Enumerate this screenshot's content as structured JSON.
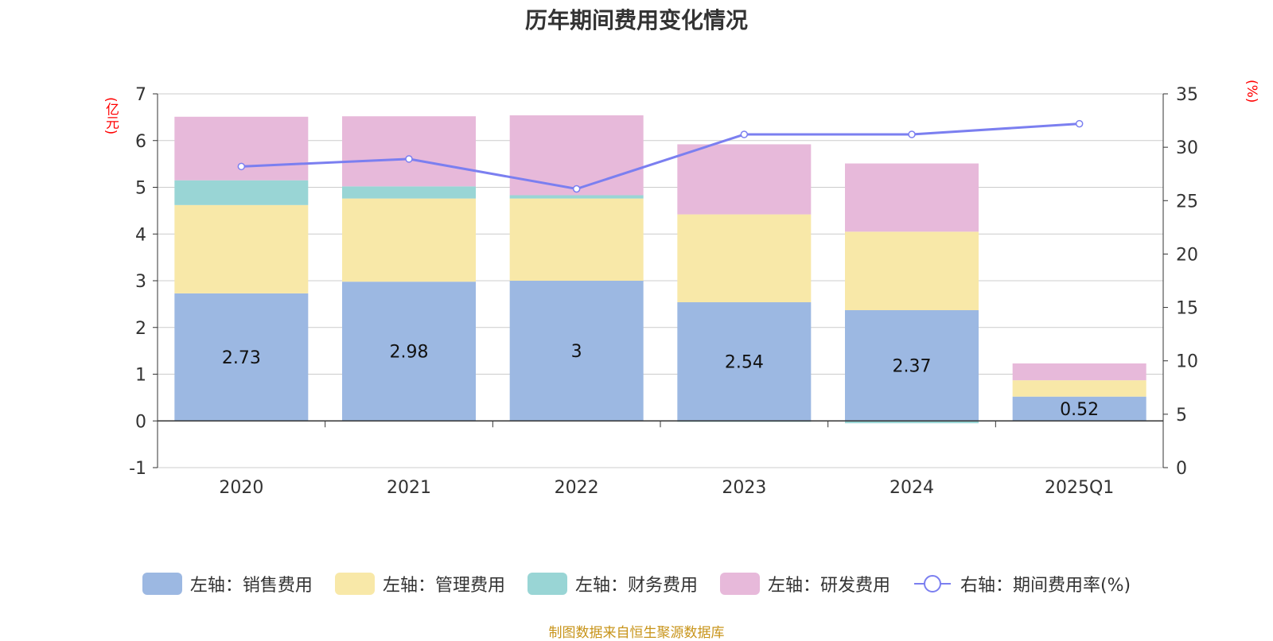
{
  "chart_data": {
    "type": "bar",
    "title": "历年期间费用变化情况",
    "categories": [
      "2020",
      "2021",
      "2022",
      "2023",
      "2024",
      "2025Q1"
    ],
    "series": [
      {
        "name": "左轴：销售费用",
        "axis": "left",
        "color": "#9cb8e2",
        "values": [
          2.73,
          2.98,
          3.0,
          2.54,
          2.37,
          0.52
        ]
      },
      {
        "name": "左轴：管理费用",
        "axis": "left",
        "color": "#f8e8a8",
        "values": [
          1.89,
          1.78,
          1.76,
          1.88,
          1.68,
          0.35
        ]
      },
      {
        "name": "左轴：财务费用",
        "axis": "left",
        "color": "#99d5d5",
        "values": [
          0.53,
          0.26,
          0.07,
          -0.02,
          -0.05,
          0.0
        ]
      },
      {
        "name": "左轴：研发费用",
        "axis": "left",
        "color": "#e7b9da",
        "values": [
          1.36,
          1.5,
          1.71,
          1.5,
          1.46,
          0.36
        ]
      },
      {
        "name": "右轴：期间费用率(%)",
        "axis": "right",
        "type": "line",
        "color": "#7b7ff0",
        "values": [
          28.2,
          28.9,
          26.1,
          31.2,
          31.2,
          32.2
        ]
      }
    ],
    "data_labels": [
      "2.73",
      "2.98",
      "3",
      "2.54",
      "2.37",
      "0.52"
    ],
    "left_axis": {
      "unit": "(亿元)",
      "ylim": [
        -1,
        7
      ],
      "ticks": [
        "-1",
        "0",
        "1",
        "2",
        "3",
        "4",
        "5",
        "6",
        "7"
      ]
    },
    "right_axis": {
      "unit": "(%)",
      "ylim": [
        0,
        35
      ],
      "ticks": [
        "0",
        "5",
        "10",
        "15",
        "20",
        "25",
        "30",
        "35"
      ]
    },
    "grid": true,
    "legend_position": "bottom",
    "source": "制图数据来自恒生聚源数据库"
  }
}
